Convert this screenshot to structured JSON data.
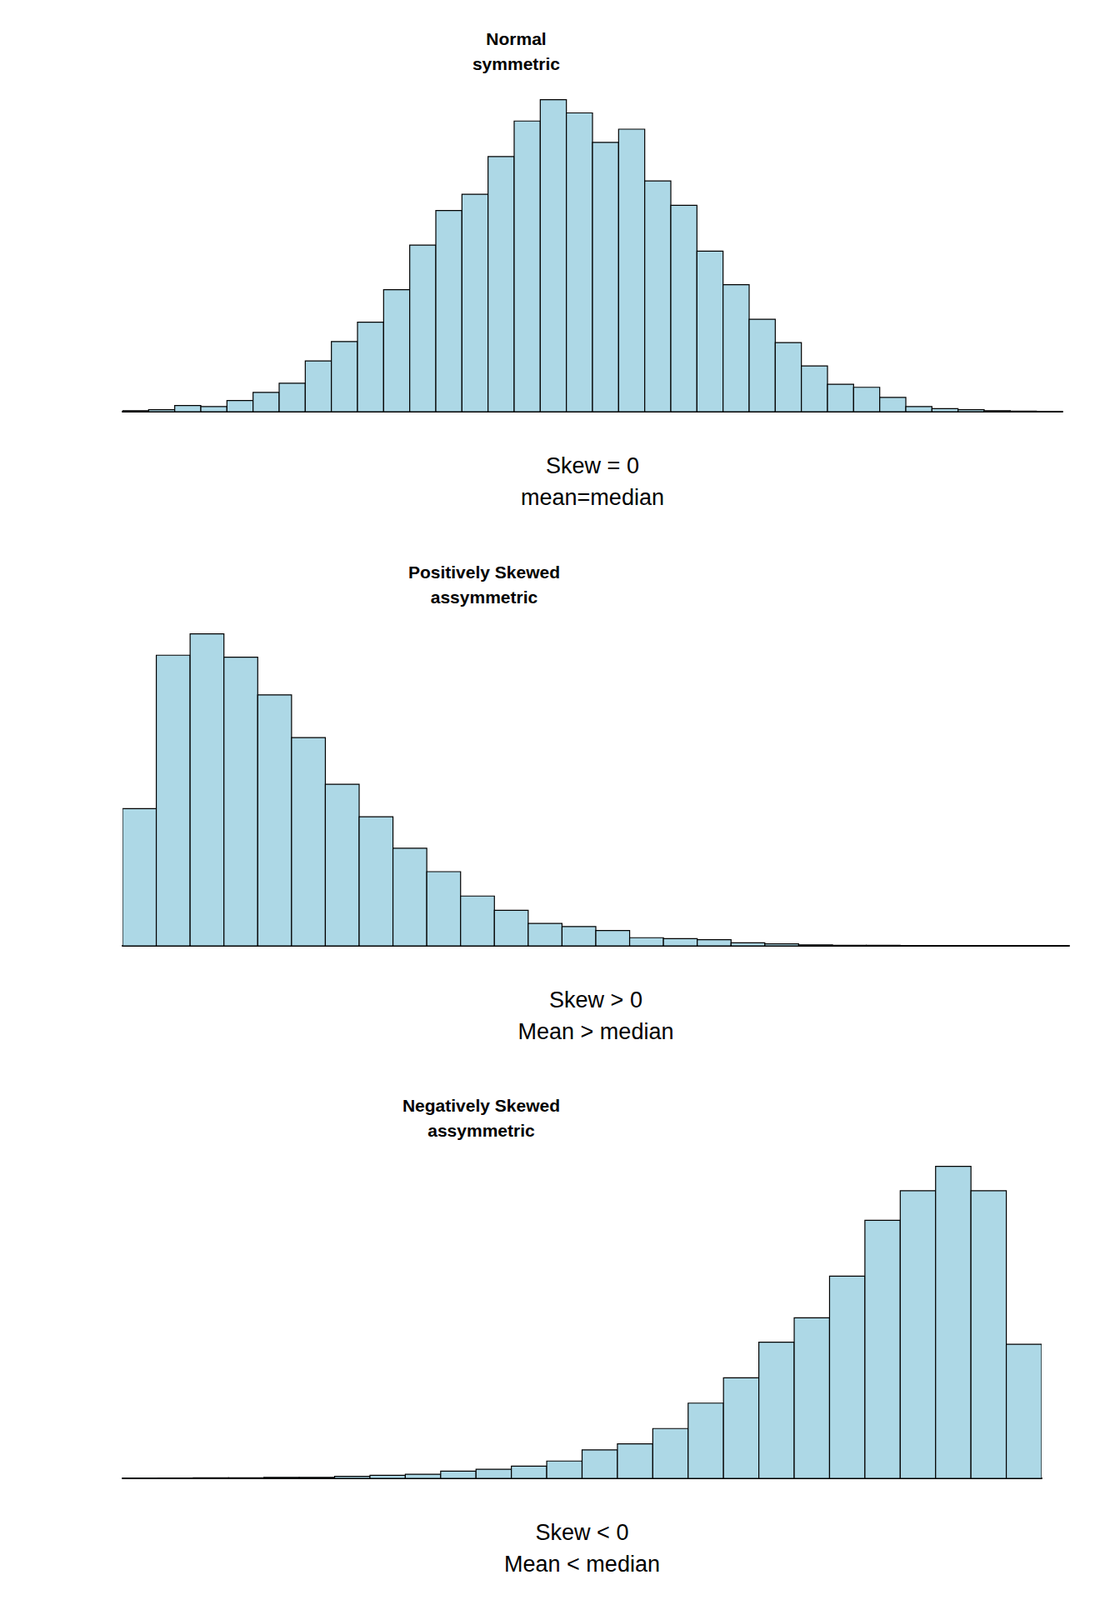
{
  "chart_data": [
    {
      "type": "histogram",
      "title": "Normal\nsymmetric",
      "xlabel": "Skew = 0\nmean=median",
      "bins": [
        -4.5,
        -4.25,
        -4,
        -3.75,
        -3.5,
        -3.25,
        -3,
        -2.75,
        -2.5,
        -2.25,
        -2,
        -1.75,
        -1.5,
        -1.25,
        -1,
        -0.75,
        -0.5,
        -0.25,
        0,
        0.25,
        0.5,
        0.75,
        1,
        1.25,
        1.5,
        1.75,
        2,
        2.25,
        2.5,
        2.75,
        3,
        3.25,
        3.5,
        3.75,
        4,
        4.25,
        4.5
      ],
      "values": [
        1,
        2,
        6,
        5,
        11,
        19,
        28,
        50,
        69,
        88,
        120,
        164,
        198,
        214,
        251,
        286,
        307,
        294,
        265,
        278,
        227,
        203,
        158,
        125,
        91,
        68,
        45,
        27,
        24,
        14,
        5,
        3,
        2,
        1,
        0.5,
        0.3
      ],
      "color": "#add8e6",
      "xlim": [
        -4.5,
        4.5
      ],
      "ylim": [
        0,
        310
      ],
      "grid": false,
      "tick_labels": false
    },
    {
      "type": "histogram",
      "title": "Positively Skewed\nassymmetric",
      "xlabel": "Skew > 0\nMean > median",
      "bins": [
        0,
        0.5,
        1,
        1.5,
        2,
        2.5,
        3,
        3.5,
        4,
        4.5,
        5,
        5.5,
        6,
        6.5,
        7,
        7.5,
        8,
        8.5,
        9,
        9.5,
        10,
        10.5,
        11,
        11.5,
        12,
        12.5,
        13,
        13.5,
        14
      ],
      "values": [
        135,
        286,
        307,
        284,
        247,
        205,
        159,
        127,
        96,
        73,
        49,
        35,
        22,
        19,
        15,
        8,
        7,
        6,
        3,
        2,
        1,
        0.5,
        0.5,
        0.3,
        0.2,
        0.2,
        0.1,
        0.1
      ],
      "color": "#add8e6",
      "xlim": [
        0,
        14
      ],
      "ylim": [
        0,
        310
      ],
      "grid": false,
      "tick_labels": false
    },
    {
      "type": "histogram",
      "title": "Negatively Skewed\nassymmetric",
      "xlabel": "Skew < 0\nMean < median",
      "bins": [
        0,
        0.5,
        1,
        1.5,
        2,
        2.5,
        3,
        3.5,
        4,
        4.5,
        5,
        5.5,
        6,
        6.5,
        7,
        7.5,
        8,
        8.5,
        9,
        9.5,
        10,
        10.5,
        11,
        11.5,
        12,
        12.5,
        13
      ],
      "values": [
        0.2,
        0.3,
        0.5,
        0.5,
        1,
        1,
        2,
        3,
        4,
        7,
        9,
        12,
        17,
        28,
        34,
        49,
        74,
        99,
        134,
        158,
        199,
        254,
        283,
        307,
        283,
        132
      ],
      "color": "#add8e6",
      "xlim": [
        0,
        13
      ],
      "ylim": [
        0,
        310
      ],
      "grid": false,
      "tick_labels": false
    }
  ]
}
